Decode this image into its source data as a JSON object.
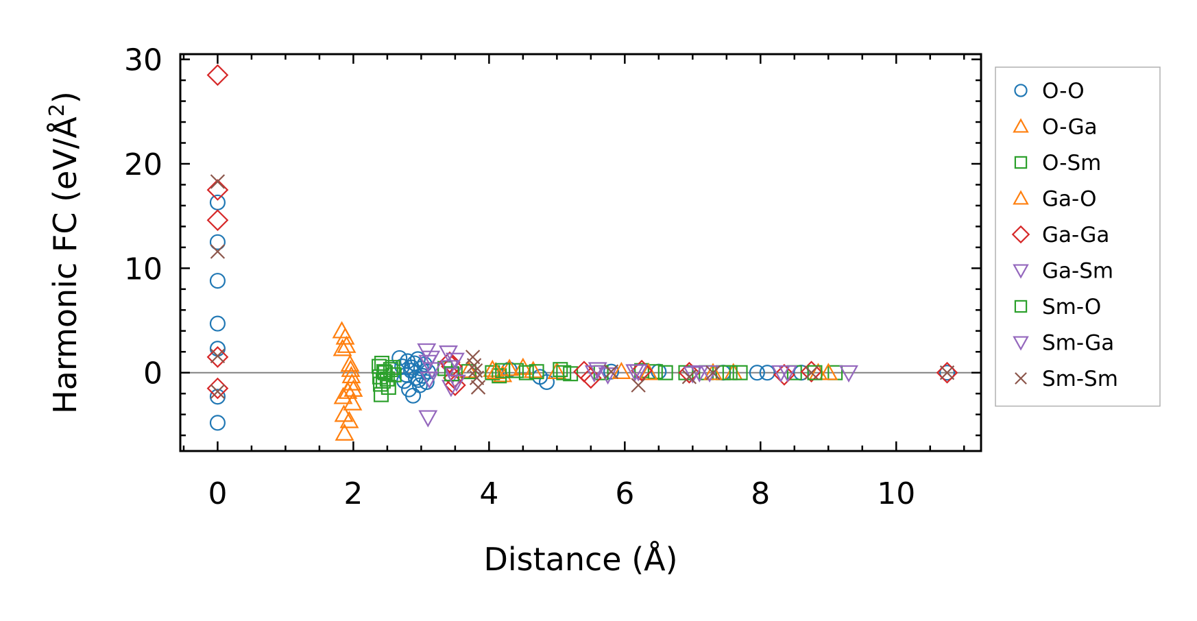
{
  "chart_data": {
    "type": "scatter",
    "xlabel": "Distance (Å)",
    "ylabel_parts": [
      "Harmonic FC (eV/Å",
      "2",
      ")"
    ],
    "xlim": [
      -0.55,
      11.25
    ],
    "ylim": [
      -7.5,
      30.5
    ],
    "x_ticks": [
      0,
      2,
      4,
      6,
      8,
      10
    ],
    "x_tick_labels": [
      "0",
      "2",
      "4",
      "6",
      "8",
      "10"
    ],
    "y_ticks": [
      0,
      10,
      20,
      30
    ],
    "y_tick_labels": [
      "0",
      "10",
      "20",
      "30"
    ],
    "grid": false,
    "legend_placement": "outside-right",
    "reference_line": {
      "y": 0,
      "color": "#808080"
    },
    "series": [
      {
        "name": "O-O",
        "marker": "circle",
        "color": "#1f77b4",
        "points": [
          [
            0,
            16.3
          ],
          [
            0,
            12.5
          ],
          [
            0,
            8.8
          ],
          [
            0,
            4.7
          ],
          [
            0,
            2.3
          ],
          [
            0,
            -2.3
          ],
          [
            0,
            -4.8
          ],
          [
            2.68,
            1.4
          ],
          [
            2.72,
            0.6
          ],
          [
            2.75,
            -0.8
          ],
          [
            2.8,
            1.1
          ],
          [
            2.82,
            -1.6
          ],
          [
            2.85,
            0.2
          ],
          [
            2.88,
            -2.2
          ],
          [
            2.9,
            0.9
          ],
          [
            2.92,
            -0.5
          ],
          [
            2.95,
            1.3
          ],
          [
            2.98,
            -1.2
          ],
          [
            3.0,
            0.4
          ],
          [
            3.02,
            -0.3
          ],
          [
            3.05,
            0.8
          ],
          [
            3.08,
            -0.9
          ],
          [
            3.1,
            0.1
          ],
          [
            2.78,
            -0.2
          ],
          [
            2.86,
            0.5
          ],
          [
            2.96,
            -0.7
          ],
          [
            4.3,
            0.3
          ],
          [
            4.75,
            -0.4
          ],
          [
            4.85,
            -0.9
          ],
          [
            5.8,
            0.1
          ],
          [
            6.5,
            0.1
          ],
          [
            7.45,
            0.0
          ],
          [
            7.95,
            0.0
          ],
          [
            8.1,
            0.0
          ],
          [
            8.6,
            0.0
          ],
          [
            10.75,
            0.0
          ]
        ]
      },
      {
        "name": "O-Ga",
        "marker": "triangle-up",
        "color": "#ff7f0e",
        "points": [
          [
            1.83,
            4.0
          ],
          [
            1.84,
            2.3
          ],
          [
            1.85,
            -2.3
          ],
          [
            1.86,
            -4.0
          ],
          [
            1.87,
            -5.8
          ],
          [
            1.95,
            0.8
          ],
          [
            1.97,
            -0.3
          ],
          [
            2.0,
            -1.6
          ],
          [
            1.99,
            -2.9
          ],
          [
            3.7,
            0.2
          ],
          [
            4.05,
            0.3
          ],
          [
            4.2,
            -0.2
          ],
          [
            4.5,
            0.5
          ],
          [
            4.65,
            0.2
          ],
          [
            5.0,
            0.1
          ],
          [
            5.95,
            0.1
          ],
          [
            7.6,
            0.0
          ],
          [
            8.85,
            0.0
          ]
        ]
      },
      {
        "name": "O-Sm",
        "marker": "square",
        "color": "#2ca02c",
        "points": [
          [
            2.38,
            0.6
          ],
          [
            2.39,
            -0.4
          ],
          [
            2.4,
            -1.1
          ],
          [
            2.41,
            -2.1
          ],
          [
            2.45,
            0.1
          ],
          [
            2.5,
            -0.6
          ],
          [
            2.55,
            0.3
          ],
          [
            2.6,
            -0.2
          ],
          [
            3.35,
            0.4
          ],
          [
            3.7,
            0.1
          ],
          [
            4.05,
            0.0
          ],
          [
            4.15,
            -0.3
          ],
          [
            4.4,
            0.2
          ],
          [
            4.55,
            0.0
          ],
          [
            5.05,
            0.3
          ],
          [
            5.2,
            -0.1
          ],
          [
            5.65,
            0.0
          ],
          [
            6.25,
            0.2
          ],
          [
            6.45,
            0.1
          ],
          [
            6.9,
            0.0
          ],
          [
            7.2,
            0.0
          ],
          [
            7.45,
            0.0
          ],
          [
            7.7,
            0.0
          ],
          [
            8.5,
            0.0
          ],
          [
            9.1,
            0.0
          ]
        ]
      },
      {
        "name": "Ga-O",
        "marker": "triangle-up",
        "color": "#ff7f0e",
        "points": [
          [
            1.88,
            3.4
          ],
          [
            1.9,
            2.6
          ],
          [
            1.92,
            -1.8
          ],
          [
            1.94,
            -4.6
          ],
          [
            1.96,
            0.3
          ],
          [
            1.98,
            -1.0
          ],
          [
            4.1,
            0.1
          ],
          [
            4.3,
            0.4
          ],
          [
            6.35,
            0.0
          ],
          [
            7.3,
            0.0
          ],
          [
            9.0,
            0.0
          ]
        ]
      },
      {
        "name": "Ga-Ga",
        "marker": "diamond",
        "color": "#d62728",
        "points": [
          [
            0,
            28.5
          ],
          [
            0,
            17.5
          ],
          [
            0,
            14.6
          ],
          [
            0,
            1.5
          ],
          [
            0,
            -1.5
          ],
          [
            3.42,
            1.0
          ],
          [
            3.45,
            0.6
          ],
          [
            3.48,
            -0.5
          ],
          [
            3.5,
            -1.2
          ],
          [
            5.4,
            0.1
          ],
          [
            5.5,
            -0.5
          ],
          [
            6.25,
            0.2
          ],
          [
            6.95,
            0.0
          ],
          [
            8.35,
            -0.2
          ],
          [
            8.75,
            0.1
          ],
          [
            10.75,
            0.0
          ]
        ]
      },
      {
        "name": "Ga-Sm",
        "marker": "triangle-down",
        "color": "#9467bd",
        "points": [
          [
            3.08,
            2.1
          ],
          [
            3.1,
            1.0
          ],
          [
            3.12,
            -0.6
          ],
          [
            3.1,
            -4.3
          ],
          [
            3.4,
            1.9
          ],
          [
            3.42,
            0.5
          ],
          [
            3.44,
            -1.4
          ],
          [
            3.46,
            -0.2
          ],
          [
            5.6,
            0.3
          ],
          [
            5.75,
            -0.2
          ],
          [
            6.2,
            0.1
          ],
          [
            7.0,
            -0.1
          ],
          [
            7.1,
            0.0
          ],
          [
            8.3,
            0.0
          ],
          [
            9.3,
            0.0
          ]
        ]
      },
      {
        "name": "Sm-O",
        "marker": "square",
        "color": "#2ca02c",
        "points": [
          [
            2.42,
            0.9
          ],
          [
            2.44,
            -0.8
          ],
          [
            2.47,
            0.0
          ],
          [
            2.52,
            -1.4
          ],
          [
            2.58,
            0.5
          ],
          [
            3.45,
            -0.1
          ],
          [
            4.2,
            0.2
          ],
          [
            4.7,
            0.1
          ],
          [
            5.1,
            0.0
          ],
          [
            6.6,
            0.0
          ],
          [
            7.55,
            0.0
          ],
          [
            8.8,
            0.0
          ]
        ]
      },
      {
        "name": "Sm-Ga",
        "marker": "triangle-down",
        "color": "#9467bd",
        "points": [
          [
            3.14,
            1.4
          ],
          [
            3.16,
            0.3
          ],
          [
            3.5,
            1.2
          ],
          [
            3.52,
            -0.9
          ],
          [
            5.55,
            0.0
          ],
          [
            6.15,
            0.1
          ],
          [
            7.25,
            0.0
          ],
          [
            8.4,
            0.0
          ]
        ]
      },
      {
        "name": "Sm-Sm",
        "marker": "x",
        "color": "#8c564b",
        "points": [
          [
            0,
            18.3
          ],
          [
            0,
            11.6
          ],
          [
            0,
            1.6
          ],
          [
            0,
            -1.8
          ],
          [
            3.76,
            1.5
          ],
          [
            3.78,
            0.7
          ],
          [
            3.8,
            0.2
          ],
          [
            3.82,
            -0.5
          ],
          [
            3.84,
            -1.4
          ],
          [
            5.8,
            0.1
          ],
          [
            6.2,
            -1.2
          ],
          [
            6.95,
            -0.4
          ],
          [
            7.3,
            0.0
          ],
          [
            8.75,
            0.0
          ],
          [
            10.75,
            0.0
          ]
        ]
      }
    ]
  }
}
